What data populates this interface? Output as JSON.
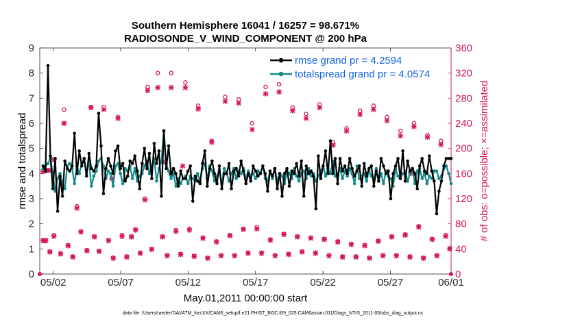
{
  "chart_data": {
    "type": "line",
    "title_line1": "Southern Hemisphere 16041 / 16257 = 98.671%",
    "title_line2": "RADIOSONDE_V_WIND_COMPONENT @ 200 hPa",
    "xlabel": "May.01,2011 00:00:00 start",
    "ylabel": "rmse and totalspread",
    "ylabel_right": "# of obs: o=possible; ×=assimilated",
    "footer": "data file: /Users/raeder/DAI/ATM_forcXX/CAM6_setup/f.e21.FHIST_BGC.f09_025.CAM6assim.011/Diags_NTrS_2011-05/obs_diag_output.nc",
    "x_range": [
      0.5,
      31.0
    ],
    "x_tick_positions": [
      1.5,
      6.5,
      11.5,
      16.5,
      21.5,
      26.5,
      31.0
    ],
    "x_tick_labels": [
      "05/02",
      "05/07",
      "05/12",
      "05/17",
      "05/22",
      "05/27",
      "06/01"
    ],
    "ylim_left": [
      0,
      9
    ],
    "yticks_left": [
      "0",
      "1",
      "2",
      "3",
      "4",
      "5",
      "6",
      "7",
      "8",
      "9"
    ],
    "ylim_right": [
      0,
      360
    ],
    "yticks_right": [
      "0",
      "40",
      "80",
      "120",
      "160",
      "200",
      "240",
      "280",
      "320",
      "360"
    ],
    "colors": {
      "rmse": "#000000",
      "spread": "#108a8a",
      "obs": "#d4145a",
      "legend_text": "#1464e6",
      "right_axis": "#d4145a"
    },
    "series": [
      {
        "name": "rmse grand pr = 4.2594",
        "values": [
          4.3,
          4.1,
          8.3,
          4.7,
          3.4,
          4.6,
          2.5,
          3.9,
          3.1,
          4.5,
          4.2,
          4.1,
          4.3,
          5.6,
          4.0,
          4.9,
          4.3,
          4.6,
          3.9,
          4.8,
          4.2,
          4.1,
          4.3,
          6.4,
          5.1,
          3.2,
          4.2,
          4.6,
          4.3,
          4.0,
          4.9,
          5.1,
          4.2,
          4.4,
          3.7,
          3.9,
          4.5,
          4.4,
          4.7,
          4.1,
          3.4,
          4.4,
          5.0,
          4.2,
          4.8,
          3.8,
          5.2,
          4.4,
          4.9,
          3.1,
          5.7,
          4.2,
          5.1,
          4.0,
          4.2,
          4.0,
          3.5,
          4.1,
          3.8,
          3.8,
          4.1,
          4.3,
          2.9,
          3.9,
          3.7,
          3.6,
          4.4,
          4.9,
          3.5,
          4.2,
          4.5,
          4.0,
          3.6,
          4.3,
          3.4,
          4.0,
          4.0,
          4.4,
          3.4,
          4.1,
          4.2,
          3.9,
          4.5,
          4.1,
          3.6,
          4.0,
          3.7,
          4.3,
          4.1,
          3.9,
          4.0,
          4.3,
          4.0,
          3.3,
          4.1,
          3.9,
          4.2,
          3.4,
          4.0,
          3.1,
          4.0,
          4.2,
          3.5,
          4.1,
          4.0,
          4.4,
          3.9,
          4.5,
          3.1,
          4.3,
          4.0,
          4.1,
          3.9,
          2.6,
          4.7,
          3.8,
          4.3,
          4.9,
          4.0,
          5.3,
          4.0,
          4.6,
          3.6,
          4.6,
          4.1,
          4.3,
          4.0,
          4.6,
          4.2,
          3.9,
          4.1,
          4.3,
          3.5,
          4.4,
          3.9,
          4.2,
          4.3,
          3.5,
          4.1,
          3.7,
          4.6,
          4.3,
          4.0,
          4.1,
          3.0,
          4.0,
          4.3,
          4.6,
          3.8,
          4.9,
          3.7,
          4.5,
          4.1,
          4.2,
          4.0,
          3.4,
          4.3,
          4.6,
          4.1,
          4.0,
          4.7,
          4.1,
          3.7,
          2.4,
          3.3,
          3.7,
          4.3,
          4.6,
          4.6,
          4.6
        ]
      },
      {
        "name": "totalspread grand pr = 4.0574",
        "values": [
          4.2,
          4.3,
          4.4,
          4.6,
          4.0,
          3.3,
          3.8,
          4.0,
          3.6,
          3.4,
          4.3,
          4.4,
          4.2,
          3.6,
          4.3,
          4.0,
          4.4,
          4.6,
          4.0,
          4.5,
          3.5,
          3.9,
          4.1,
          4.5,
          4.6,
          4.3,
          3.8,
          4.1,
          4.0,
          3.5,
          4.3,
          4.4,
          4.0,
          3.6,
          4.2,
          4.1,
          4.3,
          3.8,
          4.2,
          3.7,
          3.9,
          4.0,
          4.3,
          4.5,
          4.0,
          4.3,
          4.6,
          3.7,
          4.2,
          4.5,
          5.7,
          4.4,
          4.1,
          3.8,
          4.0,
          3.5,
          3.8,
          3.6,
          3.8,
          3.9,
          3.6,
          3.9,
          3.8,
          3.7,
          4.0,
          3.7,
          4.2,
          4.4,
          3.8,
          4.3,
          4.1,
          3.7,
          3.9,
          4.1,
          3.6,
          4.2,
          4.0,
          3.7,
          4.0,
          4.2,
          3.8,
          4.1,
          4.0,
          4.2,
          3.8,
          4.1,
          3.9,
          4.0,
          3.8,
          4.1,
          4.0,
          4.3,
          3.8,
          3.7,
          4.1,
          3.8,
          4.2,
          3.7,
          4.0,
          3.9,
          3.6,
          4.1,
          4.0,
          3.8,
          4.2,
          3.9,
          3.7,
          4.0,
          4.1,
          3.8,
          4.2,
          3.9,
          4.0,
          3.7,
          3.9,
          4.1,
          4.3,
          3.9,
          4.2,
          4.0,
          4.5,
          3.9,
          4.0,
          4.2,
          3.8,
          4.1,
          3.9,
          4.2,
          4.0,
          3.6,
          4.3,
          3.8,
          3.9,
          4.0,
          3.7,
          4.1,
          3.9,
          3.8,
          4.2,
          3.7,
          4.0,
          3.6,
          4.1,
          3.9,
          3.8,
          3.5,
          4.2,
          3.9,
          3.8,
          4.0,
          4.1,
          3.7,
          4.0,
          4.2,
          3.6,
          4.1,
          4.2,
          3.8,
          4.0,
          3.6,
          3.9,
          3.8,
          4.1,
          4.1,
          3.8,
          3.9,
          4.2,
          4.3,
          4.0,
          3.6
        ]
      }
    ],
    "obs_possible": [
      [
        0.75,
        54
      ],
      [
        0.95,
        54
      ],
      [
        1.25,
        36
      ],
      [
        1.55,
        62
      ],
      [
        2.05,
        33
      ],
      [
        2.3,
        262
      ],
      [
        2.6,
        46
      ],
      [
        2.95,
        28
      ],
      [
        3.25,
        108
      ],
      [
        3.55,
        68
      ],
      [
        4.0,
        38
      ],
      [
        4.3,
        266
      ],
      [
        4.55,
        60
      ],
      [
        4.9,
        37
      ],
      [
        5.25,
        266
      ],
      [
        5.6,
        54
      ],
      [
        5.95,
        26
      ],
      [
        6.3,
        250
      ],
      [
        6.6,
        62
      ],
      [
        6.95,
        28
      ],
      [
        7.3,
        60
      ],
      [
        7.6,
        71
      ],
      [
        7.95,
        34
      ],
      [
        8.3,
        120
      ],
      [
        8.5,
        298
      ],
      [
        8.8,
        40
      ],
      [
        9.25,
        320
      ],
      [
        9.6,
        60
      ],
      [
        9.95,
        30
      ],
      [
        10.25,
        320
      ],
      [
        10.6,
        70
      ],
      [
        10.95,
        32
      ],
      [
        11.3,
        305
      ],
      [
        11.6,
        72
      ],
      [
        11.95,
        29
      ],
      [
        12.25,
        268
      ],
      [
        12.6,
        58
      ],
      [
        12.95,
        26
      ],
      [
        13.25,
        212
      ],
      [
        13.6,
        52
      ],
      [
        13.95,
        30
      ],
      [
        14.25,
        282
      ],
      [
        14.6,
        62
      ],
      [
        14.95,
        30
      ],
      [
        15.25,
        278
      ],
      [
        15.6,
        72
      ],
      [
        15.95,
        34
      ],
      [
        16.25,
        240
      ],
      [
        16.6,
        75
      ],
      [
        16.95,
        34
      ],
      [
        17.25,
        298
      ],
      [
        17.6,
        55
      ],
      [
        17.95,
        30
      ],
      [
        18.25,
        302
      ],
      [
        18.6,
        64
      ],
      [
        18.95,
        32
      ],
      [
        19.25,
        265
      ],
      [
        19.6,
        60
      ],
      [
        19.95,
        36
      ],
      [
        20.25,
        255
      ],
      [
        20.6,
        58
      ],
      [
        20.95,
        34
      ],
      [
        21.25,
        270
      ],
      [
        21.6,
        56
      ],
      [
        21.95,
        30
      ],
      [
        22.25,
        210
      ],
      [
        22.6,
        52
      ],
      [
        22.95,
        28
      ],
      [
        23.25,
        232
      ],
      [
        23.6,
        48
      ],
      [
        23.95,
        28
      ],
      [
        24.25,
        260
      ],
      [
        24.6,
        46
      ],
      [
        24.95,
        26
      ],
      [
        25.25,
        268
      ],
      [
        25.6,
        53
      ],
      [
        25.95,
        30
      ],
      [
        26.25,
        250
      ],
      [
        26.6,
        60
      ],
      [
        26.95,
        30
      ],
      [
        27.25,
        228
      ],
      [
        27.6,
        63
      ],
      [
        27.95,
        28
      ],
      [
        28.25,
        240
      ],
      [
        28.6,
        76
      ],
      [
        28.95,
        26
      ],
      [
        29.25,
        221
      ],
      [
        29.6,
        56
      ],
      [
        29.95,
        30
      ],
      [
        30.25,
        212
      ],
      [
        30.6,
        62
      ],
      [
        30.9,
        41
      ]
    ],
    "obs_assimilated": [
      [
        0.75,
        53
      ],
      [
        0.95,
        53
      ],
      [
        1.25,
        35
      ],
      [
        1.55,
        60
      ],
      [
        2.05,
        32
      ],
      [
        2.3,
        240
      ],
      [
        2.6,
        45
      ],
      [
        2.95,
        27
      ],
      [
        3.25,
        105
      ],
      [
        3.55,
        67
      ],
      [
        4.0,
        37
      ],
      [
        4.3,
        265
      ],
      [
        4.55,
        59
      ],
      [
        4.9,
        36
      ],
      [
        5.25,
        262
      ],
      [
        5.6,
        53
      ],
      [
        5.95,
        25
      ],
      [
        6.3,
        248
      ],
      [
        6.6,
        60
      ],
      [
        6.95,
        27
      ],
      [
        7.3,
        59
      ],
      [
        7.6,
        70
      ],
      [
        7.95,
        33
      ],
      [
        8.3,
        118
      ],
      [
        8.5,
        292
      ],
      [
        8.8,
        39
      ],
      [
        9.25,
        297
      ],
      [
        9.6,
        59
      ],
      [
        9.95,
        29
      ],
      [
        10.25,
        297
      ],
      [
        10.6,
        68
      ],
      [
        10.95,
        31
      ],
      [
        11.3,
        297
      ],
      [
        11.6,
        70
      ],
      [
        11.95,
        28
      ],
      [
        12.25,
        263
      ],
      [
        12.6,
        57
      ],
      [
        12.95,
        25
      ],
      [
        13.25,
        210
      ],
      [
        13.6,
        51
      ],
      [
        13.95,
        29
      ],
      [
        14.25,
        275
      ],
      [
        14.6,
        61
      ],
      [
        14.95,
        29
      ],
      [
        15.25,
        272
      ],
      [
        15.6,
        71
      ],
      [
        15.95,
        33
      ],
      [
        16.25,
        230
      ],
      [
        16.6,
        72
      ],
      [
        16.95,
        33
      ],
      [
        17.25,
        287
      ],
      [
        17.6,
        54
      ],
      [
        17.95,
        29
      ],
      [
        18.25,
        290
      ],
      [
        18.6,
        63
      ],
      [
        18.95,
        31
      ],
      [
        19.25,
        260
      ],
      [
        19.6,
        59
      ],
      [
        19.95,
        35
      ],
      [
        20.25,
        248
      ],
      [
        20.6,
        57
      ],
      [
        20.95,
        33
      ],
      [
        21.25,
        265
      ],
      [
        21.6,
        55
      ],
      [
        21.95,
        29
      ],
      [
        22.25,
        205
      ],
      [
        22.6,
        51
      ],
      [
        22.95,
        27
      ],
      [
        23.25,
        228
      ],
      [
        23.6,
        47
      ],
      [
        23.95,
        27
      ],
      [
        24.25,
        254
      ],
      [
        24.6,
        45
      ],
      [
        24.95,
        25
      ],
      [
        25.25,
        262
      ],
      [
        25.6,
        52
      ],
      [
        25.95,
        29
      ],
      [
        26.25,
        244
      ],
      [
        26.6,
        59
      ],
      [
        26.95,
        29
      ],
      [
        27.25,
        220
      ],
      [
        27.6,
        62
      ],
      [
        27.95,
        27
      ],
      [
        28.25,
        235
      ],
      [
        28.6,
        75
      ],
      [
        28.95,
        25
      ],
      [
        29.25,
        218
      ],
      [
        29.6,
        55
      ],
      [
        29.95,
        29
      ],
      [
        30.25,
        206
      ],
      [
        30.6,
        60
      ],
      [
        30.9,
        40
      ]
    ],
    "obs_assimilated_extra": [
      [
        0.75,
        163
      ],
      [
        1.0,
        165
      ],
      [
        1.2,
        165
      ],
      [
        1.55,
        182
      ],
      [
        2.3,
        240
      ],
      [
        5.85,
        152
      ],
      [
        9.6,
        178
      ],
      [
        10.25,
        160
      ],
      [
        11.1,
        172
      ],
      [
        28.0,
        160
      ]
    ]
  }
}
